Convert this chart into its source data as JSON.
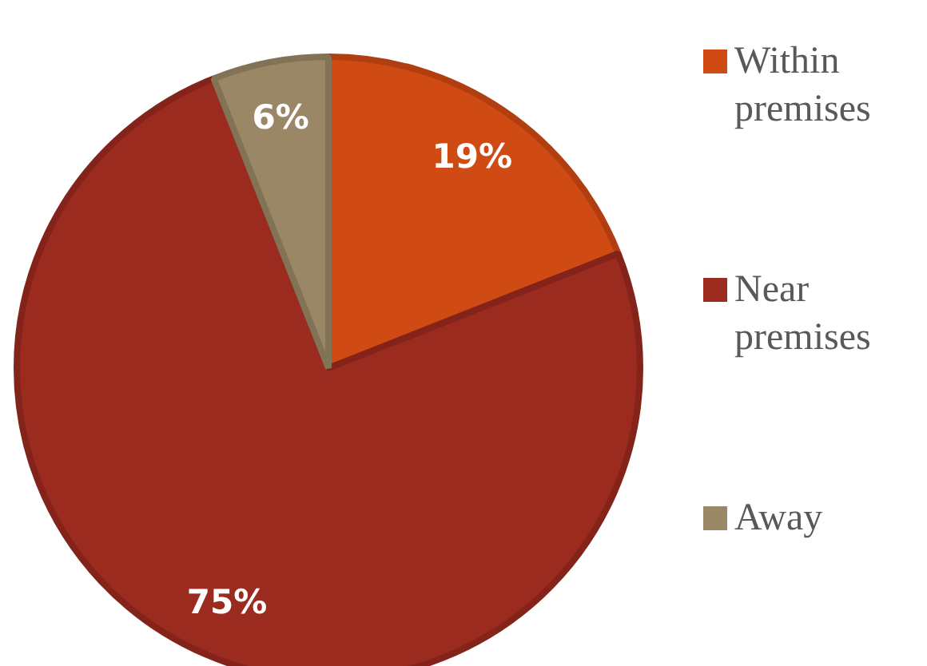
{
  "chart_data": {
    "type": "pie",
    "categories": [
      "Within premises",
      "Near premises",
      "Away"
    ],
    "values": [
      19,
      75,
      6
    ],
    "colors": [
      "#d04a14",
      "#9b2a1f",
      "#9a8766"
    ],
    "value_labels": [
      "19%",
      "75%",
      "6%"
    ],
    "legend": "right"
  }
}
